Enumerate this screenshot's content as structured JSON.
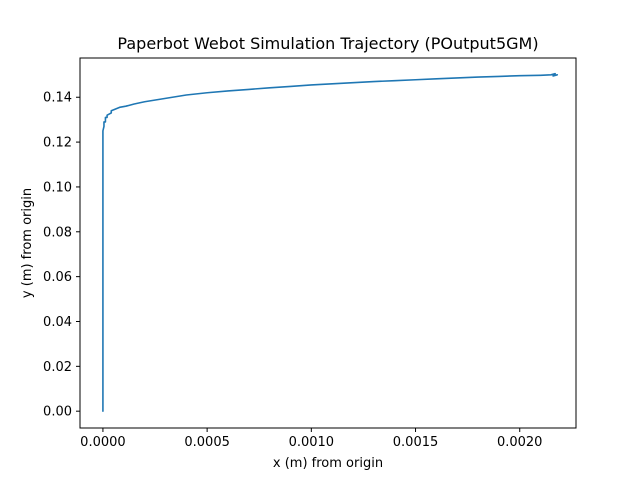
{
  "chart_data": {
    "type": "line",
    "title": "Paperbot Webot Simulation Trajectory (POutput5GM)",
    "xlabel": "x (m) from origin",
    "ylabel": "y (m) from origin",
    "xlim": [
      -0.00011,
      0.00227
    ],
    "ylim": [
      -0.0075,
      0.1575
    ],
    "xticks": [
      0.0,
      0.0005,
      0.001,
      0.0015,
      0.002
    ],
    "xtick_labels": [
      "0.0000",
      "0.0005",
      "0.0010",
      "0.0015",
      "0.0020"
    ],
    "yticks": [
      0.0,
      0.02,
      0.04,
      0.06,
      0.08,
      0.1,
      0.12,
      0.14
    ],
    "ytick_labels": [
      "0.00",
      "0.02",
      "0.04",
      "0.06",
      "0.08",
      "0.10",
      "0.12",
      "0.14"
    ],
    "grid": false,
    "legend": "none",
    "colors": {
      "line": "#1f77b4",
      "axes": "#000000",
      "background": "#ffffff"
    },
    "series": [
      {
        "x": [
          0.0,
          0.0,
          0.0,
          0.0,
          5e-06,
          5e-06,
          1.2e-05,
          1.2e-05,
          2e-05,
          2e-05,
          4e-05,
          4e-05,
          8e-05,
          0.00011,
          0.00013,
          0.00015,
          0.0002,
          0.0003,
          0.0004,
          0.0005,
          0.0006,
          0.0007,
          0.0008,
          0.0009,
          0.001,
          0.0011,
          0.0012,
          0.0013,
          0.0014,
          0.0015,
          0.0016,
          0.0017,
          0.0018,
          0.0019,
          0.002,
          0.0021,
          0.00215,
          0.00217,
          0.00216,
          0.00218
        ],
        "y": [
          0.0,
          0.04,
          0.1,
          0.125,
          0.127,
          0.129,
          0.129,
          0.131,
          0.131,
          0.132,
          0.133,
          0.134,
          0.1355,
          0.136,
          0.1365,
          0.137,
          0.138,
          0.1395,
          0.141,
          0.142,
          0.1428,
          0.1435,
          0.1442,
          0.1448,
          0.1455,
          0.146,
          0.1465,
          0.147,
          0.1474,
          0.1478,
          0.1482,
          0.1486,
          0.149,
          0.1493,
          0.1496,
          0.1498,
          0.15,
          0.1505,
          0.1495,
          0.15
        ]
      }
    ]
  }
}
